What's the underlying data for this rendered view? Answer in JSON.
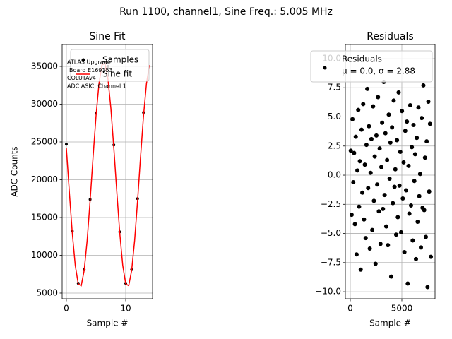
{
  "title": "Run 1100, channel1, Sine Freq.: 5.005 MHz",
  "chart_data": [
    {
      "type": "scatter",
      "title": "Sine Fit",
      "xlabel": "Sample #",
      "ylabel": "ADC Counts",
      "xlim": [
        -0.71,
        14.52
      ],
      "ylim": [
        4250,
        37900
      ],
      "xticks": [
        0,
        10
      ],
      "yticks": [
        5000,
        10000,
        15000,
        20000,
        25000,
        30000,
        35000
      ],
      "grid": true,
      "legend": "upper right",
      "annotation": [
        "ATLAS Upgrade",
        "Board E169153",
        "COLUTAv4",
        "ADC ASIC, Channel 1"
      ],
      "series": [
        {
          "name": "Samples",
          "color": "#000000",
          "x": [
            0,
            1,
            2,
            3,
            4,
            5,
            6,
            7,
            8,
            9,
            10,
            11,
            12,
            13
          ],
          "values": [
            24700,
            13200,
            6300,
            8100,
            17400,
            28800,
            35500,
            35000,
            24600,
            13100,
            6300,
            8100,
            17500,
            28900
          ]
        },
        {
          "name": "Sine fit",
          "type": "line",
          "color": "#ff0000",
          "x": [
            0,
            0.5,
            1,
            1.5,
            2,
            2.5,
            3,
            3.5,
            4,
            4.5,
            5,
            5.5,
            6,
            6.5,
            7,
            7.5,
            8,
            8.5,
            9,
            9.5,
            10,
            10.5,
            11,
            11.5,
            12,
            12.5,
            13,
            13.5,
            14
          ],
          "values": [
            24170,
            18380,
            12920,
            8650,
            6220,
            5980,
            7990,
            11940,
            17230,
            23030,
            28480,
            32750,
            35180,
            35420,
            33410,
            29460,
            24170,
            18380,
            12920,
            8650,
            6220,
            5980,
            7990,
            11940,
            17230,
            23030,
            28480,
            32750,
            35180
          ]
        }
      ]
    },
    {
      "type": "scatter",
      "title": "Residuals",
      "xlabel": "Sample #",
      "xlim": [
        -480,
        8220
      ],
      "ylim": [
        -10.6,
        11.21
      ],
      "xticks": [
        0,
        5000
      ],
      "yticks": [
        {
          "value": -10,
          "label": "−10.0"
        },
        {
          "value": -7.5,
          "label": "−7.5"
        },
        {
          "value": -5,
          "label": "−5.0"
        },
        {
          "value": -2.5,
          "label": "−2.5"
        },
        {
          "value": 0,
          "label": "0.0"
        },
        {
          "value": 2.5,
          "label": "2.5"
        },
        {
          "value": 5,
          "label": "5.0"
        },
        {
          "value": 7.5,
          "label": "7.5"
        },
        {
          "value": 10,
          "label": "10.0"
        }
      ],
      "grid": true,
      "legend": "upper right",
      "legend_note": "μ = 0.0, σ = 2.88",
      "series": [
        {
          "name": "Residuals",
          "color": "#000000",
          "x": [
            50,
            130,
            210,
            290,
            370,
            450,
            530,
            610,
            690,
            770,
            850,
            930,
            1010,
            1090,
            1170,
            1250,
            1330,
            1410,
            1490,
            1570,
            1650,
            1730,
            1810,
            1890,
            1970,
            2050,
            2130,
            2210,
            2290,
            2370,
            2450,
            2530,
            2610,
            2690,
            2770,
            2850,
            2930,
            3010,
            3090,
            3170,
            3250,
            3330,
            3410,
            3490,
            3570,
            3650,
            3730,
            3810,
            3890,
            3970,
            4050,
            4130,
            4210,
            4290,
            4370,
            4450,
            4530,
            4610,
            4690,
            4770,
            4850,
            4930,
            5010,
            5090,
            5170,
            5250,
            5330,
            5410,
            5490,
            5570,
            5650,
            5730,
            5810,
            5890,
            5970,
            6050,
            6130,
            6210,
            6290,
            6370,
            6450,
            6530,
            6610,
            6690,
            6770,
            6850,
            6930,
            7010,
            7090,
            7170,
            7250,
            7330,
            7410,
            7490,
            7570,
            7650,
            7730,
            7810
          ],
          "values": [
            2.1,
            -3.4,
            4.8,
            -0.6,
            1.9,
            -4.2,
            3.3,
            -6.8,
            0.4,
            5.6,
            -2.7,
            1.2,
            -8.1,
            3.9,
            -1.5,
            6.1,
            -3.8,
            0.9,
            -5.4,
            2.6,
            7.4,
            -1.1,
            4.2,
            -6.3,
            0.2,
            3.1,
            -4.7,
            5.9,
            -2.2,
            1.6,
            -7.6,
            3.4,
            -0.8,
            6.7,
            -3.1,
            2.3,
            -5.9,
            0.7,
            4.5,
            -2.9,
            8.0,
            -1.7,
            3.6,
            -4.4,
            1.3,
            -6.0,
            5.2,
            -0.3,
            2.8,
            -8.7,
            4.1,
            -2.4,
            6.4,
            -1.0,
            0.5,
            -5.1,
            3.0,
            -3.6,
            7.1,
            -0.9,
            2.0,
            -4.9,
            5.5,
            -2.0,
            1.1,
            -6.6,
            3.8,
            -1.3,
            4.6,
            -9.3,
            0.8,
            -3.3,
            6.0,
            -2.6,
            2.4,
            -5.6,
            4.3,
            -0.5,
            1.8,
            -7.2,
            3.2,
            -4.0,
            5.8,
            -1.8,
            0.1,
            -6.2,
            4.9,
            -2.8,
            7.7,
            -3.0,
            1.5,
            -5.3,
            2.9,
            -9.6,
            6.3,
            -1.4,
            4.4,
            -7.0
          ]
        }
      ]
    }
  ]
}
